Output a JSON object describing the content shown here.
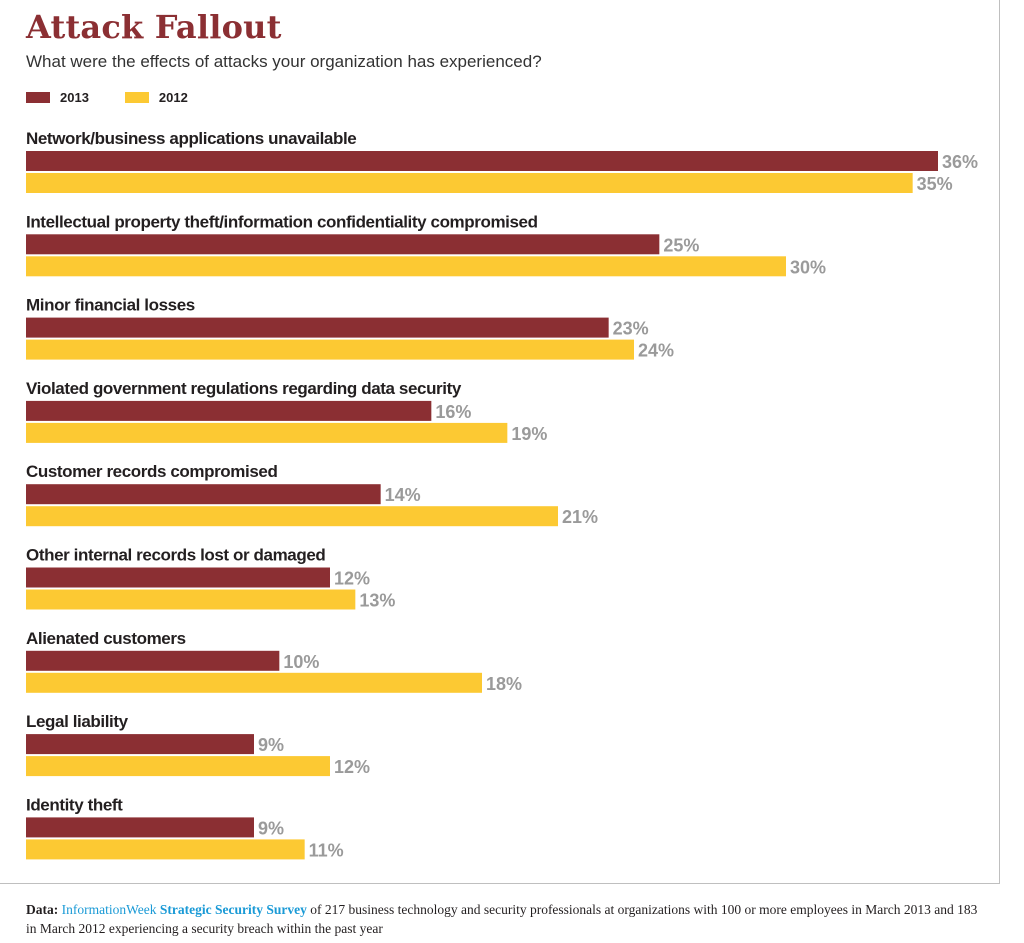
{
  "title": "Attack Fallout",
  "subtitle": "What were the effects of attacks your organization has experienced?",
  "colors": {
    "series2013": "#8b2f33",
    "series2012": "#fcc933",
    "label": "#9a9a9a"
  },
  "chart_data": {
    "type": "bar",
    "orientation": "horizontal",
    "title": "Attack Fallout",
    "subtitle": "What were the effects of attacks your organization has experienced?",
    "unit": "%",
    "legend_position": "top-left",
    "categories": [
      "Network/business applications unavailable",
      "Intellectual property theft/information confidentiality compromised",
      "Minor financial losses",
      "Violated government regulations regarding data security",
      "Customer records compromised",
      "Other internal records lost or damaged",
      "Alienated customers",
      "Legal liability",
      "Identity theft"
    ],
    "series": [
      {
        "name": "2013",
        "values": [
          36,
          25,
          23,
          16,
          14,
          12,
          10,
          9,
          9
        ]
      },
      {
        "name": "2012",
        "values": [
          35,
          30,
          24,
          19,
          21,
          13,
          18,
          12,
          11
        ]
      }
    ],
    "xlim": [
      0,
      36
    ]
  },
  "footer": {
    "lead": "Data:",
    "source_brand": "InformationWeek",
    "source_name": "Strategic Security Survey",
    "text": "of 217 business technology and security professionals at organizations with 100 or more employees in March 2013 and 183 in March 2012 experiencing a security breach within the past year"
  }
}
